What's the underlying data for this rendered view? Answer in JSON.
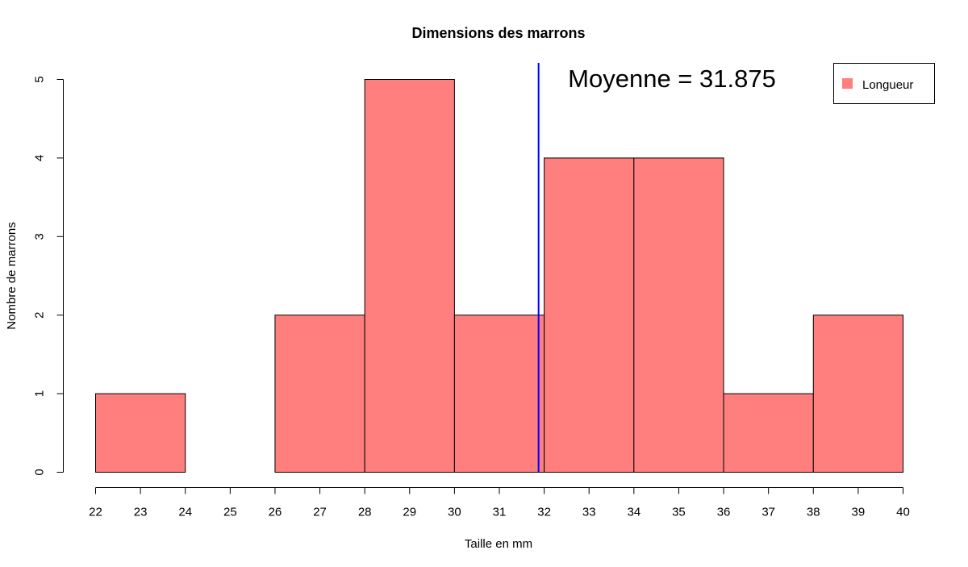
{
  "chart_data": {
    "type": "bar",
    "title": "Dimensions des marrons",
    "xlabel": "Taille en mm",
    "ylabel": "Nombre de marrons",
    "bins": [
      {
        "from": 22,
        "to": 24,
        "count": 1
      },
      {
        "from": 24,
        "to": 26,
        "count": 0
      },
      {
        "from": 26,
        "to": 28,
        "count": 2
      },
      {
        "from": 28,
        "to": 30,
        "count": 5
      },
      {
        "from": 30,
        "to": 32,
        "count": 2
      },
      {
        "from": 32,
        "to": 34,
        "count": 4
      },
      {
        "from": 34,
        "to": 36,
        "count": 4
      },
      {
        "from": 36,
        "to": 38,
        "count": 1
      },
      {
        "from": 38,
        "to": 40,
        "count": 2
      }
    ],
    "series": [
      {
        "name": "Longueur",
        "color": "#ff7f7f"
      }
    ],
    "xlim": [
      22,
      40
    ],
    "ylim": [
      0,
      5
    ],
    "x_ticks": [
      "22",
      "23",
      "24",
      "25",
      "26",
      "27",
      "28",
      "29",
      "30",
      "31",
      "32",
      "33",
      "34",
      "35",
      "36",
      "37",
      "38",
      "39",
      "40"
    ],
    "y_ticks": [
      "0",
      "1",
      "2",
      "3",
      "4",
      "5"
    ],
    "mean": {
      "value": 31.875,
      "label": "Moyenne = 31.875",
      "color": "#0000ff"
    },
    "legend_placement": "top-right",
    "grid": false
  }
}
